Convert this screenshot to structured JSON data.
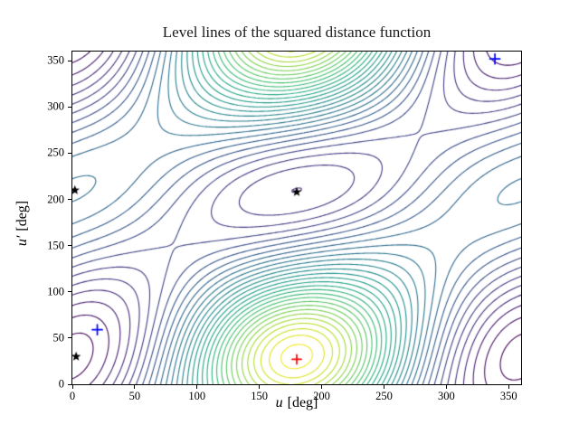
{
  "title": "Level lines of the squared distance function",
  "axes": {
    "xlabel_var": "u",
    "xlabel_unit": "[deg]",
    "ylabel_var": "u′",
    "ylabel_unit": "[deg]",
    "x_ticks": [
      0,
      50,
      100,
      150,
      200,
      250,
      300,
      350
    ],
    "y_ticks": [
      0,
      50,
      100,
      150,
      200,
      250,
      300,
      350
    ]
  },
  "chart_data": {
    "type": "contour",
    "title": "Level lines of the squared distance function",
    "xlabel": "u [deg]",
    "ylabel": "u′ [deg]",
    "x_range": [
      0,
      360
    ],
    "y_range": [
      0,
      360
    ],
    "grid": false,
    "legend": "none",
    "n_levels": 32,
    "line_width": 1.1,
    "colormap": "viridis",
    "colormap_stops": [
      "#440154",
      "#482878",
      "#414487",
      "#355f8d",
      "#2a788e",
      "#21918c",
      "#22a884",
      "#44bf70",
      "#7ad151",
      "#bddf26",
      "#fde725"
    ],
    "field_model": "f(u,v) = A - B*cos(u-v+phi) - C*cos(u+v-phi) - D*cos(u) + E*cos(v-phi) + G*((1-cos u)/2)^3*((1+cos(v-phi))/2)^3 ; 360-deg periodic approximation of the plotted squared-distance field, v = u'",
    "field_params": {
      "A": 2.2,
      "B": 1.0,
      "C": 0.5,
      "D": 0.8,
      "E": 0.5,
      "G": 0.9,
      "phi_deg": 30
    },
    "features": {
      "global_maximum": [
        180,
        30
      ],
      "deep_valley_minimum": [
        2,
        30
      ],
      "central_saddle": [
        180,
        208
      ],
      "left_edge_critical_point": [
        2,
        210
      ]
    },
    "markers": [
      {
        "name": "critical-point-stars",
        "symbol": "star",
        "color": "#000000",
        "size": 11,
        "points": [
          [
            3,
            30
          ],
          [
            2,
            210
          ],
          [
            180,
            208
          ]
        ]
      },
      {
        "name": "blue-plus-markers",
        "symbol": "plus",
        "color": "#0000ff",
        "size": 11,
        "points": [
          [
            20,
            59
          ],
          [
            339,
            352
          ]
        ]
      },
      {
        "name": "red-plus-marker",
        "symbol": "plus",
        "color": "#ff0000",
        "size": 10,
        "points": [
          [
            180,
            27
          ]
        ]
      }
    ]
  },
  "colors": {
    "background": "#ffffff",
    "frame": "#000000",
    "text": "#000000"
  }
}
